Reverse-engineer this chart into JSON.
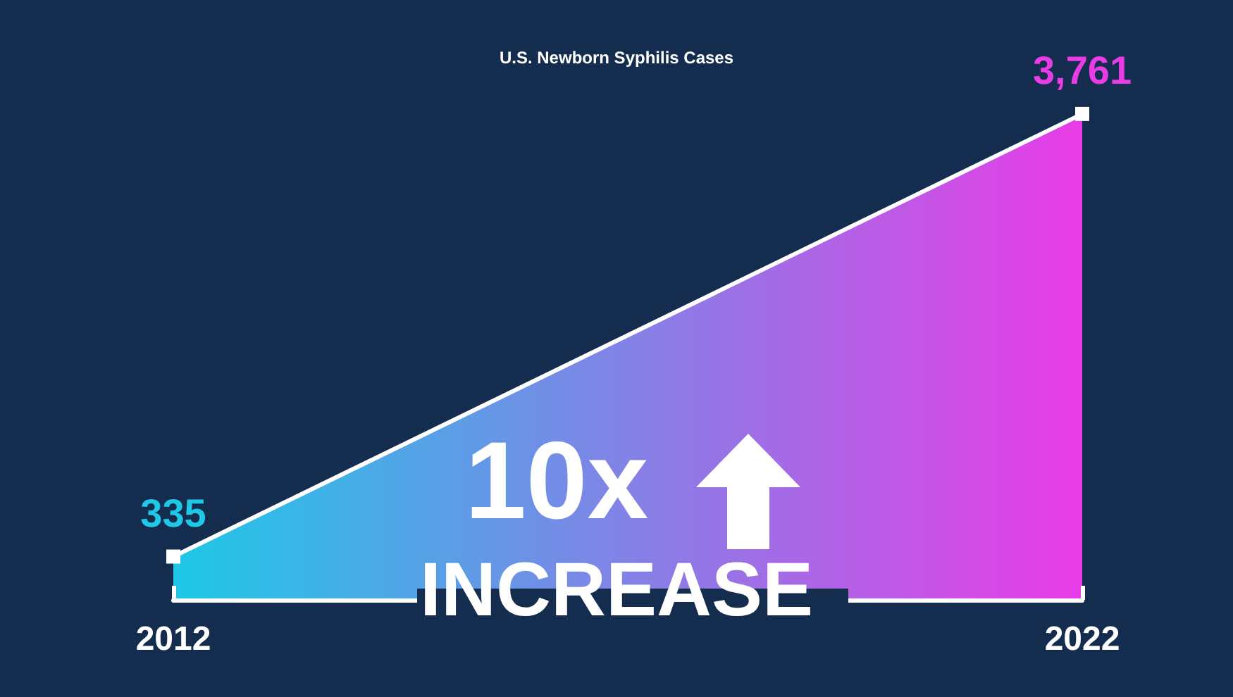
{
  "chart_data": {
    "type": "area",
    "title": "U.S. Newborn Syphilis Cases",
    "categories": [
      "2012",
      "2022"
    ],
    "series": [
      {
        "color": "#ffffff",
        "colors": [
          "#1ec8e6",
          "#e83ce6"
        ],
        "values": [
          335,
          3761
        ],
        "value_labels": [
          "335",
          "3,761"
        ]
      }
    ],
    "marker": "square",
    "annotations": [
      "10x",
      "INCREASE"
    ]
  }
}
